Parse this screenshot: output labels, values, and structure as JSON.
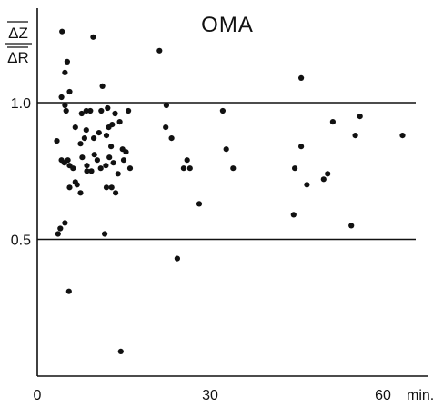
{
  "chart_data": {
    "type": "scatter",
    "title": "OMA",
    "ylabel": {
      "numerator": "ΔZ",
      "denominator": "ΔR"
    },
    "x_unit": "min.",
    "xlim": [
      0,
      66
    ],
    "ylim": [
      0,
      1.33
    ],
    "grid": false,
    "x_ticks": [
      {
        "value": 0,
        "label": "0"
      },
      {
        "value": 30,
        "label": "30"
      },
      {
        "value": 60,
        "label": "60"
      }
    ],
    "y_ticks": [
      {
        "value": 0.5,
        "label": "0.5"
      },
      {
        "value": 1.0,
        "label": "1.0"
      }
    ],
    "reference_lines": [
      0.5,
      1.0
    ],
    "points": [
      [
        4.3,
        1.26
      ],
      [
        9.7,
        1.24
      ],
      [
        5.2,
        1.15
      ],
      [
        4.8,
        1.11
      ],
      [
        11.3,
        1.06
      ],
      [
        5.6,
        1.04
      ],
      [
        4.2,
        1.02
      ],
      [
        4.8,
        0.99
      ],
      [
        5.0,
        0.97
      ],
      [
        3.4,
        0.86
      ],
      [
        4.2,
        0.79
      ],
      [
        4.7,
        0.78
      ],
      [
        5.3,
        0.79
      ],
      [
        5.6,
        0.77
      ],
      [
        6.2,
        0.76
      ],
      [
        6.6,
        0.71
      ],
      [
        6.9,
        0.7
      ],
      [
        5.6,
        0.69
      ],
      [
        6.6,
        0.91
      ],
      [
        7.7,
        0.96
      ],
      [
        8.5,
        0.97
      ],
      [
        9.2,
        0.97
      ],
      [
        11.1,
        0.97
      ],
      [
        12.2,
        0.98
      ],
      [
        13.5,
        0.96
      ],
      [
        15.8,
        0.97
      ],
      [
        7.5,
        0.85
      ],
      [
        8.2,
        0.87
      ],
      [
        8.5,
        0.9
      ],
      [
        9.8,
        0.87
      ],
      [
        10.7,
        0.89
      ],
      [
        12.0,
        0.88
      ],
      [
        12.4,
        0.91
      ],
      [
        13.0,
        0.92
      ],
      [
        14.3,
        0.93
      ],
      [
        12.8,
        0.84
      ],
      [
        14.8,
        0.83
      ],
      [
        15.4,
        0.82
      ],
      [
        7.8,
        0.8
      ],
      [
        8.6,
        0.77
      ],
      [
        9.4,
        0.75
      ],
      [
        9.9,
        0.81
      ],
      [
        10.4,
        0.79
      ],
      [
        11.0,
        0.76
      ],
      [
        11.9,
        0.77
      ],
      [
        12.5,
        0.8
      ],
      [
        13.2,
        0.78
      ],
      [
        14.0,
        0.74
      ],
      [
        15.0,
        0.79
      ],
      [
        16.1,
        0.76
      ],
      [
        12.0,
        0.69
      ],
      [
        12.9,
        0.69
      ],
      [
        13.6,
        0.67
      ],
      [
        7.5,
        0.67
      ],
      [
        8.6,
        0.75
      ],
      [
        21.2,
        1.19
      ],
      [
        22.4,
        0.99
      ],
      [
        22.3,
        0.91
      ],
      [
        23.3,
        0.87
      ],
      [
        25.4,
        0.76
      ],
      [
        26.0,
        0.79
      ],
      [
        26.5,
        0.76
      ],
      [
        28.1,
        0.63
      ],
      [
        32.2,
        0.97
      ],
      [
        32.8,
        0.83
      ],
      [
        34.0,
        0.76
      ],
      [
        44.7,
        0.76
      ],
      [
        45.8,
        0.84
      ],
      [
        46.8,
        0.7
      ],
      [
        49.7,
        0.72
      ],
      [
        50.4,
        0.74
      ],
      [
        51.3,
        0.93
      ],
      [
        56.0,
        0.95
      ],
      [
        55.2,
        0.88
      ],
      [
        63.4,
        0.88
      ],
      [
        44.5,
        0.59
      ],
      [
        54.5,
        0.55
      ],
      [
        45.8,
        1.09
      ],
      [
        3.6,
        0.52
      ],
      [
        4.0,
        0.54
      ],
      [
        4.8,
        0.56
      ],
      [
        11.7,
        0.52
      ],
      [
        5.5,
        0.31
      ],
      [
        24.3,
        0.43
      ],
      [
        14.5,
        0.09
      ]
    ]
  }
}
